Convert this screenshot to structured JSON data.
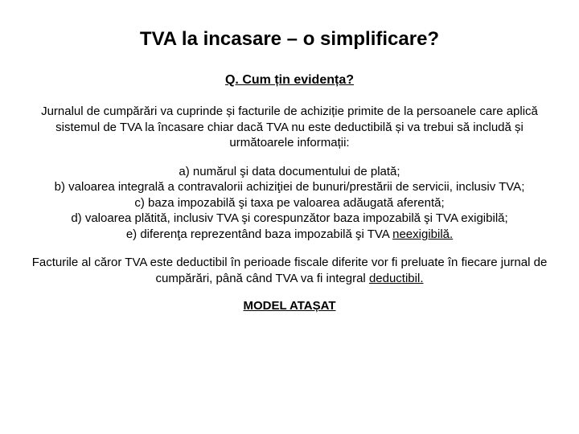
{
  "title": "TVA la incasare – o simplificare?",
  "subtitle": "Q. Cum țin evidența?",
  "intro": "Jurnalul de cumpărări va cuprinde și facturile de achiziție primite de la persoanele care aplică sistemul de TVA la încasare chiar dacă TVA nu este deductibilă și va trebui să includă și următoarele informații:",
  "items": {
    "a": "a) numărul şi data documentului de plată;",
    "b": "b) valoarea integrală a contravalorii achiziţiei de bunuri/prestării de servicii, inclusiv TVA;",
    "c": "c) baza impozabilă şi taxa pe valoarea adăugată aferentă;",
    "d": "d) valoarea plătită, inclusiv TVA şi corespunzător baza impozabilă şi TVA exigibilă;",
    "e_prefix": "e) diferenţa reprezentând baza impozabilă şi TVA ",
    "e_underlined": "neexigibilă."
  },
  "closing_prefix": "Facturile al căror TVA este deductibil în perioade fiscale diferite vor fi preluate în fiecare jurnal de cumpărări, până când TVA va fi integral ",
  "closing_underlined": "deductibil.",
  "model": "MODEL ATAȘAT"
}
